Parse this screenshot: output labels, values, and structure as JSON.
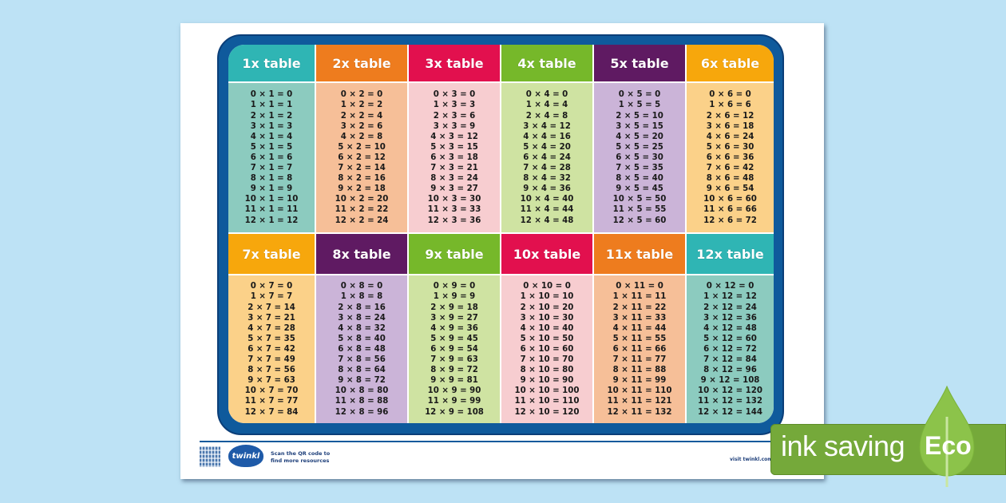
{
  "colors": {
    "background": "#bde2f5",
    "frame": "#0f5a9c",
    "eco_green": "#75a93a"
  },
  "tables": [
    {
      "label": "1x table",
      "header_color": "#2fb5b4",
      "body_color": "#8ccbbf",
      "rows": [
        "0 × 1 = 0",
        "1 × 1 = 1",
        "2 × 1 = 2",
        "3 × 1 = 3",
        "4 × 1 = 4",
        "5 × 1 = 5",
        "6 × 1 = 6",
        "7 × 1 = 7",
        "8 × 1 = 8",
        "9 × 1 = 9",
        "10 × 1 = 10",
        "11 × 1 = 11",
        "12 × 1 = 12"
      ]
    },
    {
      "label": "2x table",
      "header_color": "#ee7c1e",
      "body_color": "#f6bf98",
      "rows": [
        "0 × 2 = 0",
        "1 × 2 = 2",
        "2 × 2 = 4",
        "3 × 2 = 6",
        "4 × 2 = 8",
        "5 × 2 = 10",
        "6 × 2 = 12",
        "7 × 2 = 14",
        "8 × 2 = 16",
        "9 × 2 = 18",
        "10 × 2 = 20",
        "11 × 2 = 22",
        "12 × 2 = 24"
      ]
    },
    {
      "label": "3x table",
      "header_color": "#e2104e",
      "body_color": "#f7cdd0",
      "rows": [
        "0 × 3 = 0",
        "1 × 3 = 3",
        "2 × 3 = 6",
        "3 × 3 = 9",
        "4 × 3 = 12",
        "5 × 3 = 15",
        "6 × 3 = 18",
        "7 × 3 = 21",
        "8 × 3 = 24",
        "9 × 3 = 27",
        "10 × 3 = 30",
        "11 × 3 = 33",
        "12 × 3 = 36"
      ]
    },
    {
      "label": "4x table",
      "header_color": "#76b82a",
      "body_color": "#cfe3a2",
      "rows": [
        "0 × 4 = 0",
        "1 × 4 = 4",
        "2 × 4 = 8",
        "3 × 4 = 12",
        "4 × 4 = 16",
        "5 × 4 = 20",
        "6 × 4 = 24",
        "7 × 4 = 28",
        "8 × 4 = 32",
        "9 × 4 = 36",
        "10 × 4 = 40",
        "11 × 4 = 44",
        "12 × 4 = 48"
      ]
    },
    {
      "label": "5x table",
      "header_color": "#5f1a62",
      "body_color": "#cbb4d8",
      "rows": [
        "0 × 5 = 0",
        "1 × 5 = 5",
        "2 × 5 = 10",
        "3 × 5 = 15",
        "4 × 5 = 20",
        "5 × 5 = 25",
        "6 × 5 = 30",
        "7 × 5 = 35",
        "8 × 5 = 40",
        "9 × 5 = 45",
        "10 × 5 = 50",
        "11 × 5 = 55",
        "12 × 5 = 60"
      ]
    },
    {
      "label": "6x table",
      "header_color": "#f7a70c",
      "body_color": "#fbd189",
      "rows": [
        "0 × 6 = 0",
        "1 × 6 = 6",
        "2 × 6 = 12",
        "3 × 6 = 18",
        "4 × 6 = 24",
        "5 × 6 = 30",
        "6 × 6 = 36",
        "7 × 6 = 42",
        "8 × 6 = 48",
        "9 × 6 = 54",
        "10 × 6 = 60",
        "11 × 6 = 66",
        "12 × 6 = 72"
      ]
    },
    {
      "label": "7x table",
      "header_color": "#f7a70c",
      "body_color": "#fbd189",
      "rows": [
        "0 × 7 = 0",
        "1 × 7 = 7",
        "2 × 7 = 14",
        "3 × 7 = 21",
        "4 × 7 = 28",
        "5 × 7 = 35",
        "6 × 7 = 42",
        "7 × 7 = 49",
        "8 × 7 = 56",
        "9 × 7 = 63",
        "10 × 7 = 70",
        "11 × 7 = 77",
        "12 × 7 = 84"
      ]
    },
    {
      "label": "8x table",
      "header_color": "#5f1a62",
      "body_color": "#cbb4d8",
      "rows": [
        "0 × 8 = 0",
        "1 × 8 = 8",
        "2 × 8 = 16",
        "3 × 8 = 24",
        "4 × 8 = 32",
        "5 × 8 = 40",
        "6 × 8 = 48",
        "7 × 8 = 56",
        "8 × 8 = 64",
        "9 × 8 = 72",
        "10 × 8 = 80",
        "11 × 8 = 88",
        "12 × 8 = 96"
      ]
    },
    {
      "label": "9x table",
      "header_color": "#76b82a",
      "body_color": "#cfe3a2",
      "rows": [
        "0 × 9 = 0",
        "1 × 9 = 9",
        "2 × 9 = 18",
        "3 × 9 = 27",
        "4 × 9 = 36",
        "5 × 9 = 45",
        "6 × 9 = 54",
        "7 × 9 = 63",
        "8 × 9 = 72",
        "9 × 9 = 81",
        "10 × 9 = 90",
        "11 × 9 = 99",
        "12 × 9 = 108"
      ]
    },
    {
      "label": "10x table",
      "header_color": "#e2104e",
      "body_color": "#f7cdd0",
      "rows": [
        "0 × 10 = 0",
        "1 × 10 = 10",
        "2 × 10 = 20",
        "3 × 10 = 30",
        "4 × 10 = 40",
        "5 × 10 = 50",
        "6 × 10 = 60",
        "7 × 10 = 70",
        "8 × 10 = 80",
        "9 × 10 = 90",
        "10 × 10 = 100",
        "11 × 10 = 110",
        "12 × 10 = 120"
      ]
    },
    {
      "label": "11x table",
      "header_color": "#ee7c1e",
      "body_color": "#f6bf98",
      "rows": [
        "0 × 11 = 0",
        "1 × 11 = 11",
        "2 × 11 = 22",
        "3 × 11 = 33",
        "4 × 11 = 44",
        "5 × 11 = 55",
        "6 × 11 = 66",
        "7 × 11 = 77",
        "8 × 11 = 88",
        "9 × 11 = 99",
        "10 × 11 = 110",
        "11 × 11 = 121",
        "12 × 11 = 132"
      ]
    },
    {
      "label": "12x table",
      "header_color": "#2fb5b4",
      "body_color": "#8ccbbf",
      "rows": [
        "0 × 12 = 0",
        "1 × 12 = 12",
        "2 × 12 = 24",
        "3 × 12 = 36",
        "4 × 12 = 48",
        "5 × 12 = 60",
        "6 × 12 = 72",
        "7 × 12 = 84",
        "8 × 12 = 96",
        "9 × 12 = 108",
        "10 × 12 = 120",
        "11 × 12 = 132",
        "12 × 12 = 144"
      ]
    }
  ],
  "footer": {
    "logo_text": "twinkl",
    "scan_line1": "Scan the QR code to",
    "scan_line2": "find more resources",
    "visit": "visit twinkl.com"
  },
  "badge": {
    "ink_saving": "ink saving",
    "eco": "Eco"
  }
}
